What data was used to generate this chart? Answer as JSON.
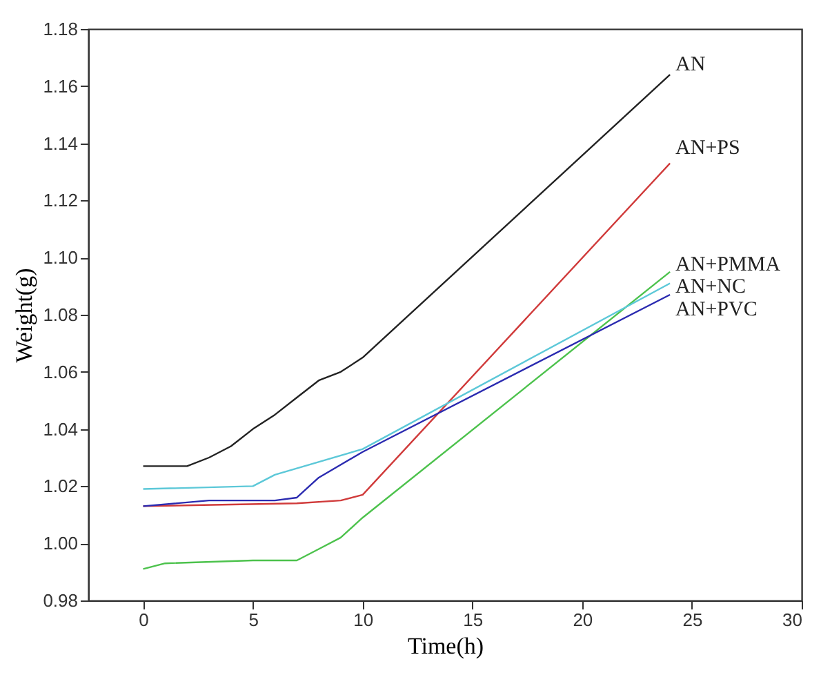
{
  "chart_data": {
    "type": "line",
    "xlabel": "Time(h)",
    "ylabel": "Weight(g)",
    "xlim": [
      -2.5,
      30
    ],
    "xticks": [
      0,
      5,
      10,
      15,
      20,
      25,
      30
    ],
    "ylim": [
      0.98,
      1.18
    ],
    "yticks": [
      {
        "value": 0.98,
        "label": "0.98"
      },
      {
        "value": 1.0,
        "label": "1.00"
      },
      {
        "value": 1.02,
        "label": "1.02"
      },
      {
        "value": 1.04,
        "label": "1.04"
      },
      {
        "value": 1.06,
        "label": "1.06"
      },
      {
        "value": 1.08,
        "label": "1.08"
      },
      {
        "value": 1.1,
        "label": "1.10"
      },
      {
        "value": 1.12,
        "label": "1.12"
      },
      {
        "value": 1.14,
        "label": "1.14"
      },
      {
        "value": 1.16,
        "label": "1.16"
      },
      {
        "value": 1.18,
        "label": "1.18"
      }
    ],
    "grid": false,
    "marker": "none",
    "line_style": "solid",
    "series": [
      {
        "name": "AN",
        "color": "#222222",
        "x": [
          0,
          1,
          2,
          3,
          4,
          5,
          6,
          7,
          8,
          9,
          10,
          24
        ],
        "values": [
          1.027,
          1.027,
          1.027,
          1.03,
          1.034,
          1.04,
          1.045,
          1.051,
          1.057,
          1.06,
          1.065,
          1.164
        ]
      },
      {
        "name": "AN+PS",
        "color": "#d03a3a",
        "x": [
          0,
          7,
          9,
          10,
          24
        ],
        "values": [
          1.013,
          1.014,
          1.015,
          1.017,
          1.133
        ]
      },
      {
        "name": "AN+PMMA",
        "color": "#4cc24c",
        "x": [
          0,
          1,
          5,
          7,
          8,
          9,
          10,
          24
        ],
        "values": [
          0.991,
          0.993,
          0.994,
          0.994,
          0.998,
          1.002,
          1.009,
          1.095
        ]
      },
      {
        "name": "AN+NC",
        "color": "#5cc8d8",
        "x": [
          0,
          5,
          6,
          10,
          24
        ],
        "values": [
          1.019,
          1.02,
          1.024,
          1.033,
          1.091
        ]
      },
      {
        "name": "AN+PVC",
        "color": "#2a2ab0",
        "x": [
          0,
          3,
          6,
          7,
          8,
          10,
          24
        ],
        "values": [
          1.013,
          1.015,
          1.015,
          1.016,
          1.023,
          1.032,
          1.087
        ]
      }
    ]
  }
}
